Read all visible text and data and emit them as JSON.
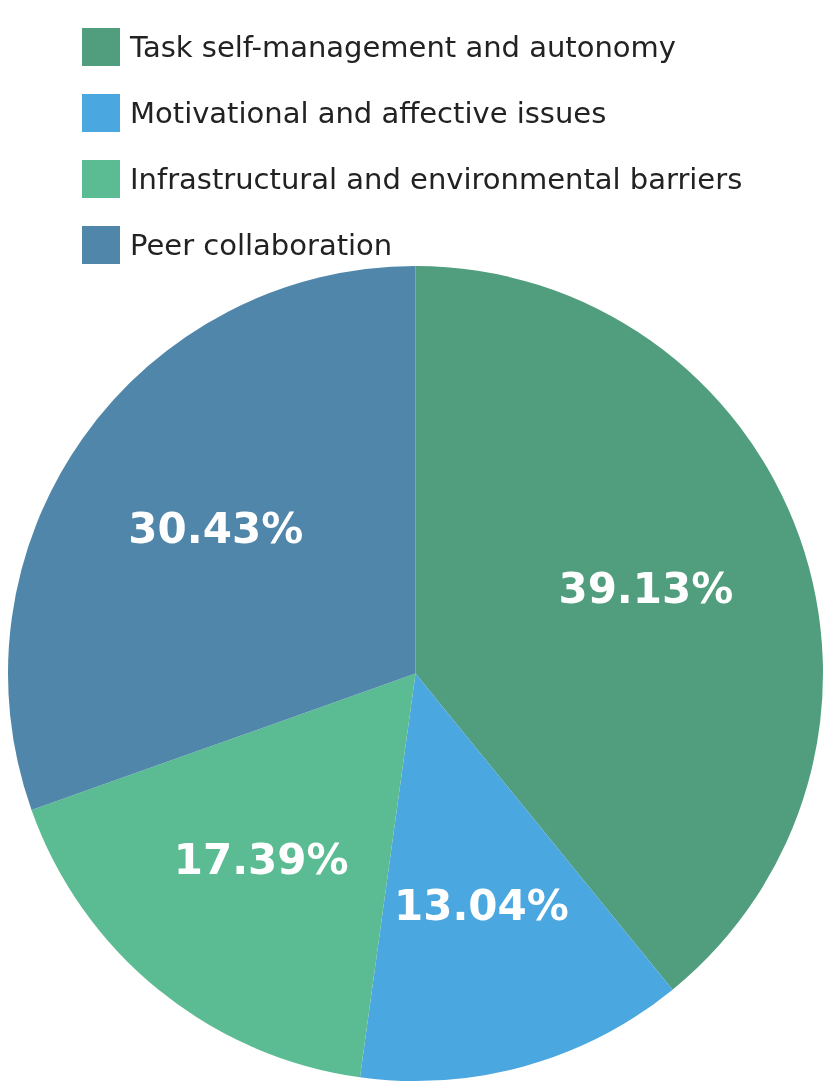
{
  "chart_data": {
    "type": "pie",
    "categories": [
      "Task self-management and autonomy",
      "Motivational and affective issues",
      "Infrastructural and environmental barriers",
      "Peer collaboration"
    ],
    "values": [
      39.13,
      13.04,
      17.39,
      30.43
    ],
    "colors": [
      "#519e7e",
      "#4aa7df",
      "#5bbc93",
      "#5086a9"
    ],
    "value_labels": [
      "39.13%",
      "13.04%",
      "17.39%",
      "30.43%"
    ],
    "legend": "top"
  }
}
